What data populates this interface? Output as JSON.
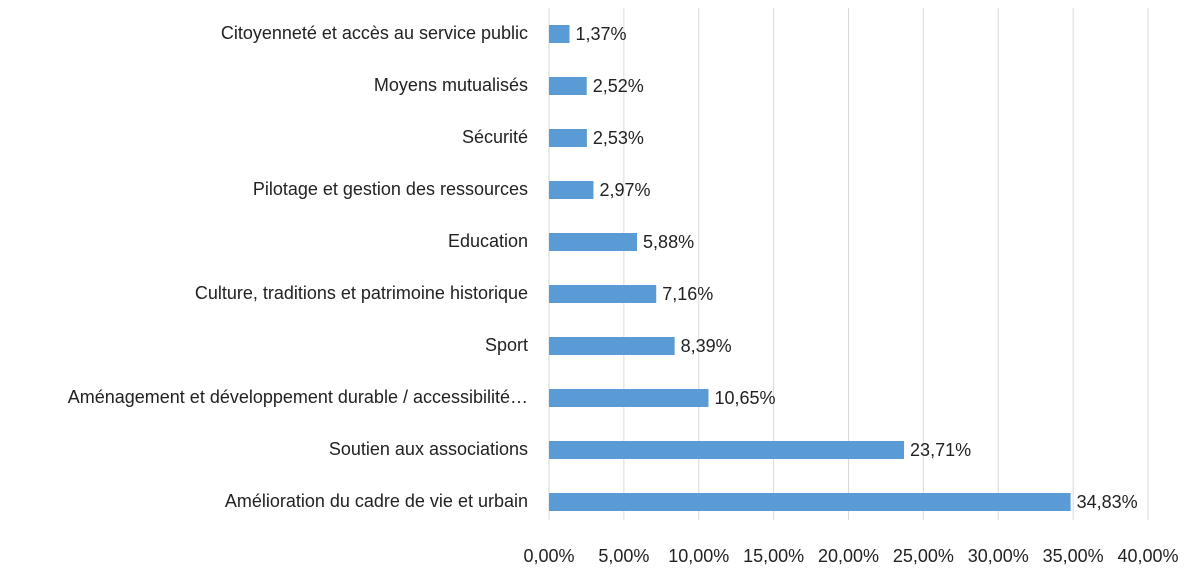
{
  "chart_data": {
    "type": "bar",
    "orientation": "horizontal",
    "categories": [
      "Citoyenneté et accès au service public",
      "Moyens mutualisés",
      "Sécurité",
      "Pilotage et gestion des ressources",
      "Education",
      "Culture, traditions et patrimoine historique",
      "Sport",
      "Aménagement et développement durable / accessibilité…",
      "Soutien aux associations",
      "Amélioration du cadre de vie et urbain"
    ],
    "values": [
      1.37,
      2.52,
      2.53,
      2.97,
      5.88,
      7.16,
      8.39,
      10.65,
      23.71,
      34.83
    ],
    "value_labels": [
      "1,37%",
      "2,52%",
      "2,53%",
      "2,97%",
      "5,88%",
      "7,16%",
      "8,39%",
      "10,65%",
      "23,71%",
      "34,83%"
    ],
    "color": "#5b9bd5",
    "xlim": [
      0,
      40
    ],
    "xticks": [
      {
        "value": 0,
        "label": "0,00%"
      },
      {
        "value": 5,
        "label": "5,00%"
      },
      {
        "value": 10,
        "label": "10,00%"
      },
      {
        "value": 15,
        "label": "15,00%"
      },
      {
        "value": 20,
        "label": "20,00%"
      },
      {
        "value": 25,
        "label": "25,00%"
      },
      {
        "value": 30,
        "label": "30,00%"
      },
      {
        "value": 35,
        "label": "35,00%"
      },
      {
        "value": 40,
        "label": "40,00%"
      }
    ],
    "grid": true
  }
}
